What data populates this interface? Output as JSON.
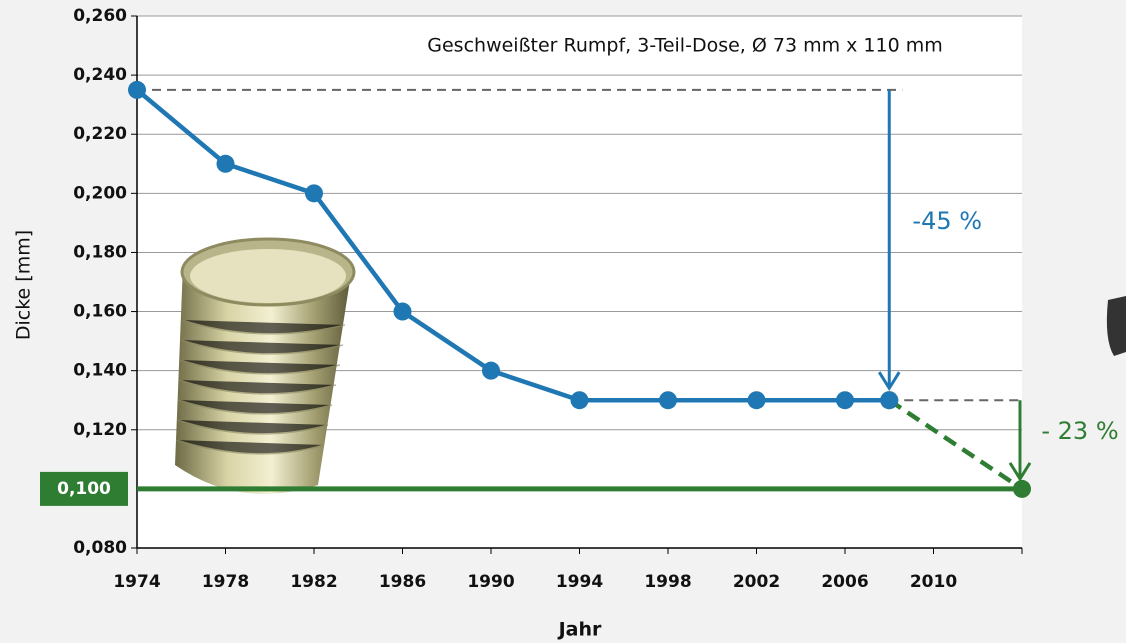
{
  "chart_data": {
    "type": "line",
    "annotation": "Geschweißter Rumpf, 3-Teil-Dose, Ø 73 mm x 110 mm",
    "ylabel": "Dicke [mm]",
    "xlabel": "Jahr",
    "change_labels": [
      "-45 %",
      "- 23 %"
    ],
    "series": [
      {
        "color": "#1f77b4",
        "dashed": false,
        "x": [
          1974,
          1978,
          1982,
          1986,
          1990,
          1994,
          1998,
          2002,
          2006,
          2008
        ],
        "values": [
          0.235,
          0.21,
          0.2,
          0.16,
          0.14,
          0.13,
          0.13,
          0.13,
          0.13,
          0.13
        ]
      },
      {
        "color": "#2e7d32",
        "dashed": true,
        "x": [
          2008,
          2014
        ],
        "values": [
          0.13,
          0.1
        ]
      }
    ],
    "target": {
      "value": 0.1,
      "label": "0,100",
      "color": "#2e7d32"
    },
    "xlim": [
      1974,
      2014
    ],
    "xticks": [
      1974,
      1978,
      1982,
      1986,
      1990,
      1994,
      1998,
      2002,
      2006,
      2010
    ],
    "ylim": [
      0.08,
      0.26
    ],
    "yticks": [
      {
        "value": 0.08,
        "label": "0,080"
      },
      {
        "value": 0.12,
        "label": "0,120"
      },
      {
        "value": 0.14,
        "label": "0,140"
      },
      {
        "value": 0.16,
        "label": "0,160"
      },
      {
        "value": 0.18,
        "label": "0,180"
      },
      {
        "value": 0.2,
        "label": "0,200"
      },
      {
        "value": 0.22,
        "label": "0,220"
      },
      {
        "value": 0.24,
        "label": "0,240"
      },
      {
        "value": 0.26,
        "label": "0,260"
      }
    ],
    "grid": true
  }
}
